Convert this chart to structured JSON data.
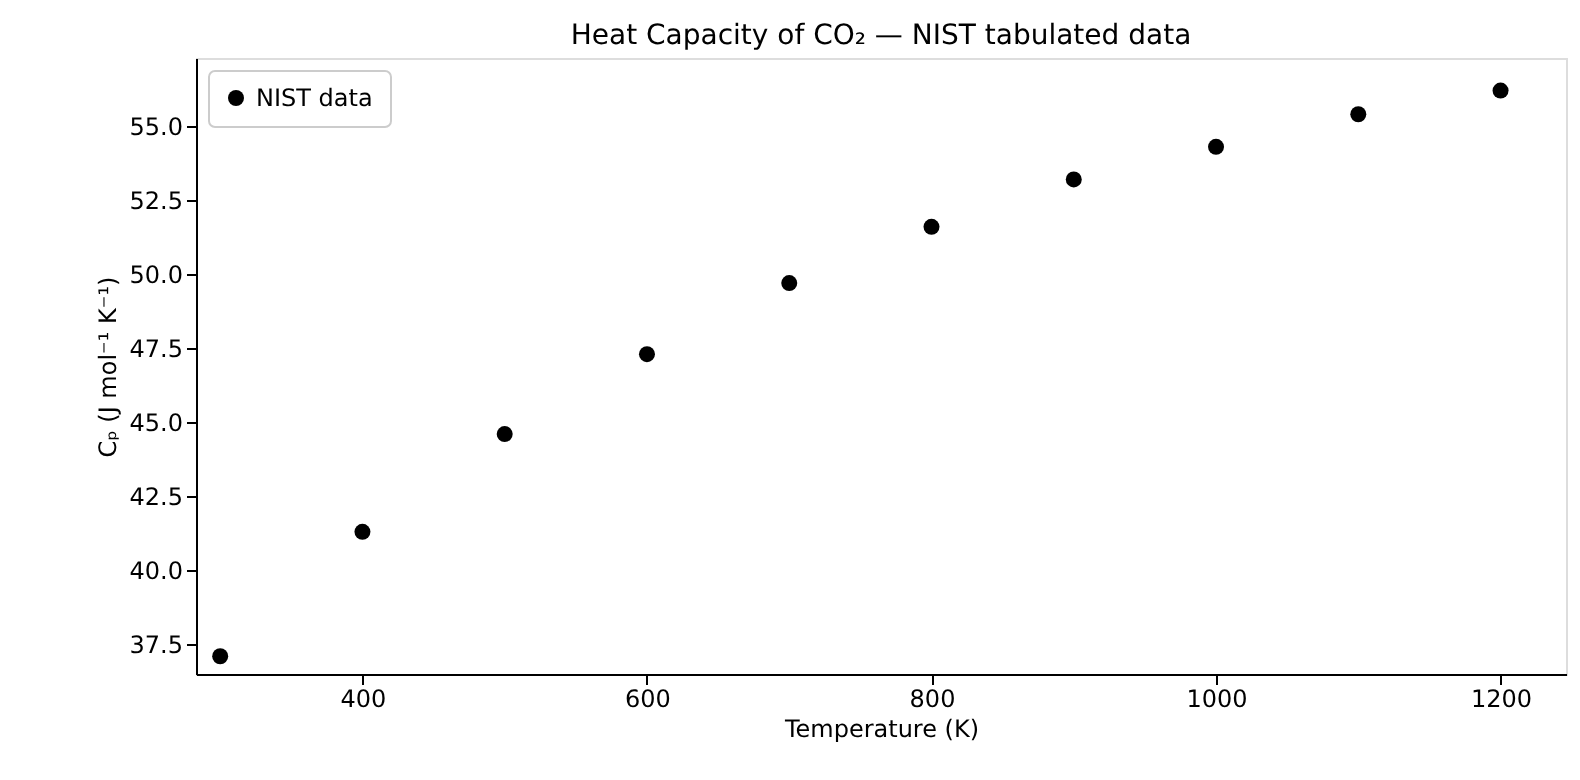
{
  "chart_data": {
    "type": "scatter",
    "title": "Heat Capacity of CO₂ — NIST tabulated data",
    "xlabel": "Temperature (K)",
    "ylabel": "Cₚ (J mol⁻¹ K⁻¹)",
    "series": [
      {
        "name": "NIST data",
        "color": "#000000",
        "x": [
          300,
          400,
          500,
          600,
          700,
          800,
          900,
          1000,
          1100,
          1200
        ],
        "values": [
          37.1,
          41.3,
          44.6,
          47.3,
          49.7,
          51.6,
          53.2,
          54.3,
          55.4,
          56.2
        ]
      }
    ],
    "xlim": [
      283,
      1246
    ],
    "xticks": [
      400,
      600,
      800,
      1000,
      1200
    ],
    "ylim": [
      36.5,
      57.3
    ],
    "yticks": [
      37.5,
      {
        "value": 40,
        "label": "40.0"
      },
      42.5,
      {
        "value": 45,
        "label": "45.0"
      },
      47.5,
      {
        "value": 50,
        "label": "50.0"
      },
      52.5,
      {
        "value": 55,
        "label": "55.0"
      }
    ],
    "marker": "circle",
    "legend": "top left",
    "grid": false
  }
}
